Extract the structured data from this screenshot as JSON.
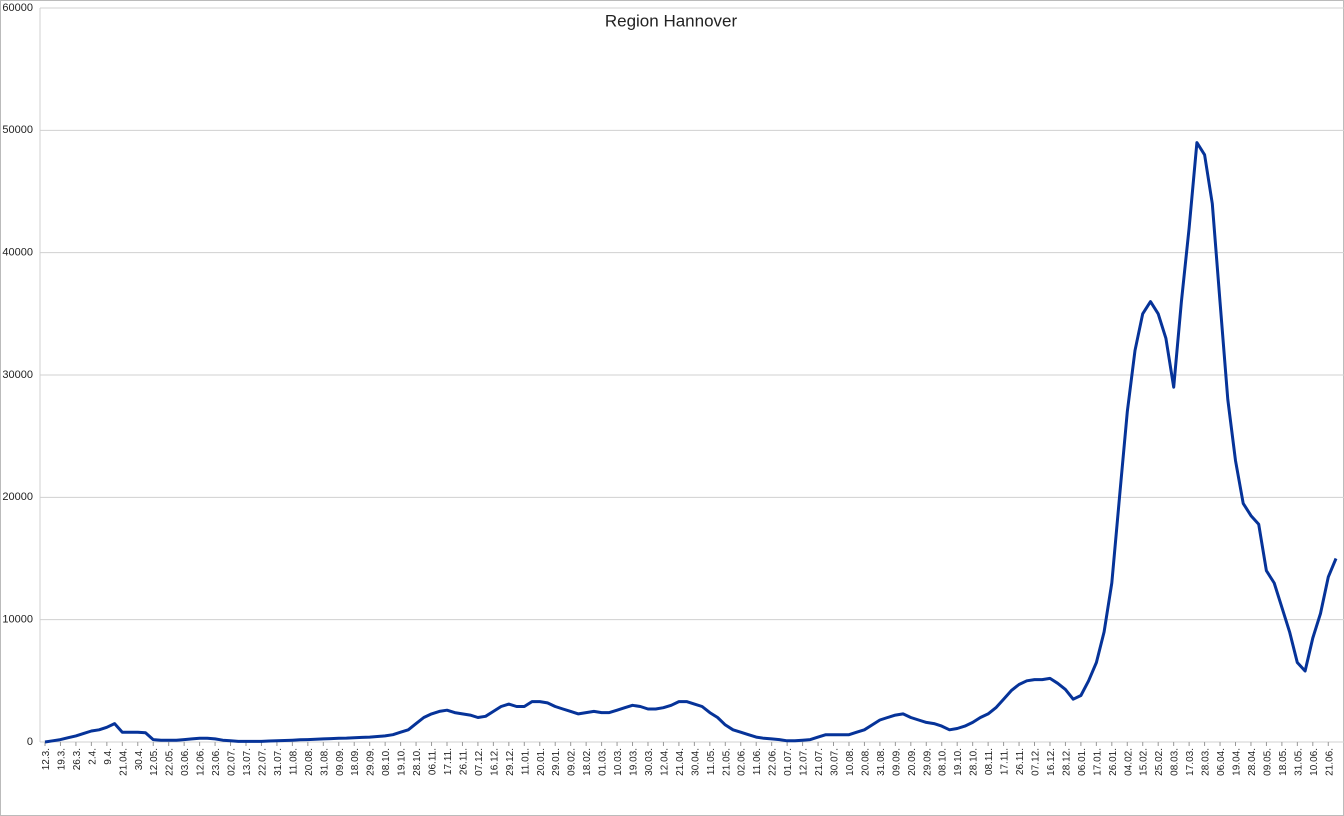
{
  "chart_data": {
    "type": "line",
    "title": "Region Hannover",
    "categories": [
      "12.3.",
      null,
      "19.3.",
      null,
      "26.3.",
      null,
      "2.4.",
      null,
      "9.4.",
      null,
      "21.04.",
      null,
      "30.4.",
      null,
      "12.05.",
      null,
      "22.05.",
      null,
      "03.06.",
      null,
      "12.06.",
      null,
      "23.06.",
      null,
      "02.07.",
      null,
      "13.07.",
      null,
      "22.07.",
      null,
      "31.07.",
      null,
      "11.08.",
      null,
      "20.08.",
      null,
      "31.08.",
      null,
      "09.09.",
      null,
      "18.09.",
      null,
      "29.09.",
      null,
      "08.10.",
      null,
      "19.10.",
      null,
      "28.10.",
      null,
      "06.11.",
      null,
      "17.11.",
      null,
      "26.11.",
      null,
      "07.12.",
      null,
      "16.12.",
      null,
      "29.12.",
      null,
      "11.01.",
      null,
      "20.01.",
      null,
      "29.01.",
      null,
      "09.02.",
      null,
      "18.02.",
      null,
      "01.03.",
      null,
      "10.03.",
      null,
      "19.03.",
      null,
      "30.03.",
      null,
      "12.04.",
      null,
      "21.04.",
      null,
      "30.04.",
      null,
      "11.05.",
      null,
      "21.05.",
      null,
      "02.06.",
      null,
      "11.06.",
      null,
      "22.06.",
      null,
      "01.07.",
      null,
      "12.07.",
      null,
      "21.07.",
      null,
      "30.07.",
      null,
      "10.08.",
      null,
      "20.08.",
      null,
      "31.08.",
      null,
      "09.09.",
      null,
      "20.09.",
      null,
      "29.09.",
      null,
      "08.10.",
      null,
      "19.10.",
      null,
      "28.10.",
      null,
      "08.11.",
      null,
      "17.11.",
      null,
      "26.11.",
      null,
      "07.12.",
      null,
      "16.12.",
      null,
      "28.12.",
      null,
      "06.01.",
      null,
      "17.01.",
      null,
      "26.01.",
      null,
      "04.02.",
      null,
      "15.02.",
      null,
      "25.02.",
      null,
      "08.03.",
      null,
      "17.03.",
      null,
      "28.03.",
      null,
      "06.04.",
      null,
      "19.04.",
      null,
      "28.04.",
      null,
      "09.05.",
      null,
      "18.05.",
      null,
      "31.05.",
      null,
      "10.06.",
      null,
      "21.06.",
      null
    ],
    "series": [
      {
        "color": "#063399",
        "values": [
          0,
          100,
          200,
          350,
          500,
          700,
          900,
          1000,
          1200,
          1500,
          800,
          800,
          800,
          750,
          200,
          150,
          150,
          150,
          200,
          250,
          300,
          300,
          250,
          150,
          100,
          50,
          50,
          50,
          50,
          80,
          100,
          120,
          150,
          180,
          200,
          220,
          250,
          280,
          300,
          320,
          350,
          380,
          400,
          450,
          500,
          600,
          800,
          1000,
          1500,
          2000,
          2300,
          2500,
          2600,
          2400,
          2300,
          2200,
          2000,
          2100,
          2500,
          2900,
          3100,
          2900,
          2900,
          3300,
          3300,
          3200,
          2900,
          2700,
          2500,
          2300,
          2400,
          2500,
          2400,
          2400,
          2600,
          2800,
          3000,
          2900,
          2700,
          2700,
          2800,
          3000,
          3300,
          3300,
          3100,
          2900,
          2400,
          2000,
          1400,
          1000,
          800,
          600,
          400,
          300,
          250,
          200,
          100,
          100,
          150,
          200,
          400,
          600,
          600,
          600,
          600,
          800,
          1000,
          1400,
          1800,
          2000,
          2200,
          2300,
          2000,
          1800,
          1600,
          1500,
          1300,
          1000,
          1100,
          1300,
          1600,
          2000,
          2300,
          2800,
          3500,
          4200,
          4700,
          5000,
          5100,
          5100,
          5200,
          4800,
          4300,
          3500,
          3800,
          5000,
          6500,
          9000,
          13000,
          20000,
          27000,
          32000,
          35000,
          36000,
          35000,
          33000,
          29000,
          36000,
          42000,
          49000,
          48000,
          44000,
          36000,
          28000,
          23000,
          19500,
          18500,
          17800,
          14000,
          13000,
          11000,
          9000,
          6500,
          5800,
          8500,
          10500,
          13500,
          15000
        ]
      }
    ],
    "ylim": [
      0,
      60000
    ],
    "yticks": [
      0,
      10000,
      20000,
      30000,
      40000,
      50000,
      60000
    ],
    "grid": true
  }
}
